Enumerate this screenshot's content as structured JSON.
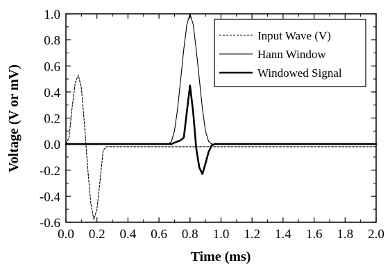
{
  "chart_data": {
    "type": "line",
    "title": "",
    "xlabel": "Time (ms)",
    "ylabel": "Voltage (V or mV)",
    "xlim": [
      0.0,
      2.0
    ],
    "ylim": [
      -0.6,
      1.0
    ],
    "x_ticks": [
      "0.0",
      "0.2",
      "0.4",
      "0.6",
      "0.8",
      "1.0",
      "1.2",
      "1.4",
      "1.6",
      "1.8",
      "2.0"
    ],
    "y_ticks": [
      "-0.6",
      "-0.4",
      "-0.2",
      "0.0",
      "0.2",
      "0.4",
      "0.6",
      "0.8",
      "1.0"
    ],
    "grid": false,
    "legend_position": "top-right",
    "series": [
      {
        "name": "Input Wave (V)",
        "line_style": "dashed",
        "color": "#000000",
        "x": [
          0.0,
          0.02,
          0.04,
          0.06,
          0.08,
          0.1,
          0.12,
          0.14,
          0.16,
          0.18,
          0.2,
          0.22,
          0.24,
          0.26,
          0.4,
          0.6,
          0.8,
          1.0,
          1.2,
          1.4,
          1.6,
          1.8,
          2.0
        ],
        "y": [
          0.0,
          0.05,
          0.28,
          0.47,
          0.53,
          0.43,
          0.15,
          -0.18,
          -0.45,
          -0.58,
          -0.5,
          -0.28,
          -0.05,
          -0.02,
          -0.02,
          -0.02,
          -0.02,
          -0.02,
          -0.02,
          -0.02,
          -0.02,
          -0.02,
          -0.02
        ]
      },
      {
        "name": "Hann Window",
        "line_style": "solid-thin",
        "color": "#000000",
        "x": [
          0.0,
          0.2,
          0.4,
          0.6,
          0.66,
          0.68,
          0.7,
          0.72,
          0.74,
          0.76,
          0.78,
          0.8,
          0.82,
          0.84,
          0.86,
          0.88,
          0.9,
          0.92,
          0.94,
          1.0,
          1.2,
          1.4,
          1.6,
          1.8,
          2.0
        ],
        "y": [
          0.0,
          0.0,
          0.0,
          0.0,
          0.0,
          0.02,
          0.1,
          0.27,
          0.5,
          0.73,
          0.92,
          1.0,
          0.92,
          0.73,
          0.5,
          0.27,
          0.1,
          0.02,
          0.0,
          0.0,
          0.0,
          0.0,
          0.0,
          0.0,
          0.0
        ]
      },
      {
        "name": "Windowed Signal",
        "line_style": "solid-thick",
        "color": "#000000",
        "x": [
          0.0,
          0.2,
          0.4,
          0.6,
          0.68,
          0.7,
          0.72,
          0.74,
          0.76,
          0.78,
          0.8,
          0.82,
          0.84,
          0.86,
          0.88,
          0.9,
          0.92,
          0.94,
          0.96,
          1.0,
          1.2,
          1.4,
          1.6,
          1.8,
          2.0
        ],
        "y": [
          0.0,
          0.0,
          0.0,
          0.0,
          0.0,
          0.01,
          0.02,
          0.03,
          0.05,
          0.25,
          0.45,
          0.25,
          -0.03,
          -0.18,
          -0.23,
          -0.15,
          -0.06,
          -0.01,
          0.0,
          0.0,
          0.0,
          0.0,
          0.0,
          0.0,
          0.0
        ]
      }
    ]
  }
}
